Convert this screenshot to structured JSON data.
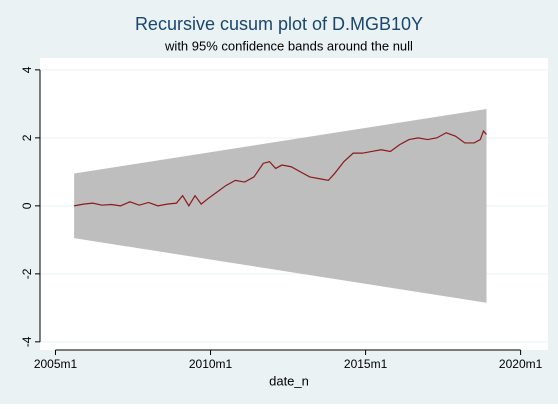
{
  "chart_data": {
    "type": "line",
    "title": "Recursive cusum plot of D.MGB10Y",
    "subtitle": "with 95% confidence bands around the null",
    "x_label": "date_n",
    "band": {
      "x": [
        2005.6,
        2018.9
      ],
      "upper": [
        0.95,
        2.85
      ],
      "lower": [
        -0.95,
        -2.85
      ],
      "color": "#bebebe"
    },
    "series": [
      {
        "color": "#8b1a1a",
        "x": [
          2005.6,
          2005.9,
          2006.2,
          2006.5,
          2006.8,
          2007.1,
          2007.4,
          2007.7,
          2008.0,
          2008.3,
          2008.6,
          2008.9,
          2009.1,
          2009.3,
          2009.5,
          2009.7,
          2009.9,
          2010.2,
          2010.5,
          2010.8,
          2011.1,
          2011.4,
          2011.7,
          2011.9,
          2012.1,
          2012.3,
          2012.6,
          2012.9,
          2013.2,
          2013.5,
          2013.8,
          2014.0,
          2014.3,
          2014.6,
          2014.9,
          2015.2,
          2015.5,
          2015.8,
          2016.1,
          2016.4,
          2016.7,
          2017.0,
          2017.3,
          2017.6,
          2017.9,
          2018.2,
          2018.5,
          2018.7,
          2018.8,
          2018.9
        ],
        "values": [
          0.0,
          0.05,
          0.08,
          0.02,
          0.04,
          0.0,
          0.12,
          0.02,
          0.1,
          0.0,
          0.05,
          0.08,
          0.3,
          0.0,
          0.3,
          0.05,
          0.2,
          0.4,
          0.6,
          0.75,
          0.7,
          0.85,
          1.25,
          1.3,
          1.1,
          1.2,
          1.15,
          1.0,
          0.85,
          0.8,
          0.75,
          0.95,
          1.3,
          1.55,
          1.55,
          1.6,
          1.65,
          1.6,
          1.8,
          1.95,
          2.0,
          1.95,
          2.0,
          2.15,
          2.05,
          1.85,
          1.85,
          1.95,
          2.2,
          2.1
        ]
      }
    ],
    "xlim": [
      2004.5,
      2020.625
    ],
    "xticks": [
      {
        "value": 2005,
        "label": "2005m1"
      },
      {
        "value": 2010,
        "label": "2010m1"
      },
      {
        "value": 2015,
        "label": "2015m1"
      },
      {
        "value": 2020,
        "label": "2020m1"
      }
    ],
    "ylim": [
      -4.24,
      4.29
    ],
    "yticks": [
      -4,
      -2,
      0,
      2,
      4
    ],
    "grid": true
  }
}
